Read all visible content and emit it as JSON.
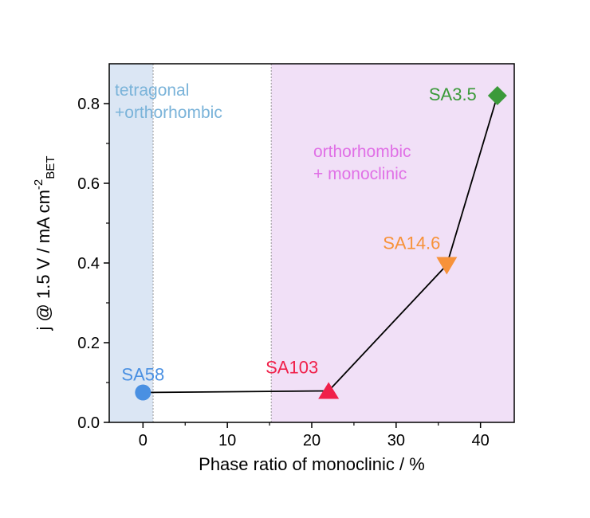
{
  "chart_data": {
    "type": "scatter",
    "xlabel": "Phase ratio of monoclinic / %",
    "ylabel": {
      "main": "j @ 1.5 V /  mA cm",
      "sup": "-2",
      "sub": "BET"
    },
    "xlim": [
      -4,
      44
    ],
    "ylim": [
      0,
      0.9
    ],
    "x_ticks": [
      0,
      10,
      20,
      30,
      40
    ],
    "y_ticks": [
      0.0,
      0.2,
      0.4,
      0.6,
      0.8
    ],
    "x_tick_labels": [
      "0",
      "10",
      "20",
      "30",
      "40"
    ],
    "y_tick_labels": [
      "0.0",
      "0.2",
      "0.4",
      "0.6",
      "0.8"
    ],
    "regions": [
      {
        "id": "tetragonal",
        "label_lines": [
          "tetragonal",
          "+orthorhombic"
        ],
        "x_range": [
          -4,
          1.2
        ],
        "fill": "#dbe6f4",
        "text_color": "#7ab3d9"
      },
      {
        "id": "monoclinic",
        "label_lines": [
          "orthorhombic",
          "+ monoclinic"
        ],
        "x_range": [
          15.2,
          44
        ],
        "fill": "#f1e0f7",
        "text_color": "#e070e6"
      }
    ],
    "series": [
      {
        "points": [
          {
            "label": "SA58",
            "x": 0,
            "y": 0.075,
            "marker": "circle",
            "color": "#4a90e2"
          },
          {
            "label": "SA103",
            "x": 22,
            "y": 0.079,
            "marker": "triangle-up",
            "color": "#f0204a"
          },
          {
            "label": "SA14.6",
            "x": 36,
            "y": 0.395,
            "marker": "triangle-down",
            "color": "#f7923a"
          },
          {
            "label": "SA3.5",
            "x": 42,
            "y": 0.82,
            "marker": "diamond",
            "color": "#3b9a3a"
          }
        ],
        "line_color": "#000000"
      }
    ],
    "grid": false
  }
}
